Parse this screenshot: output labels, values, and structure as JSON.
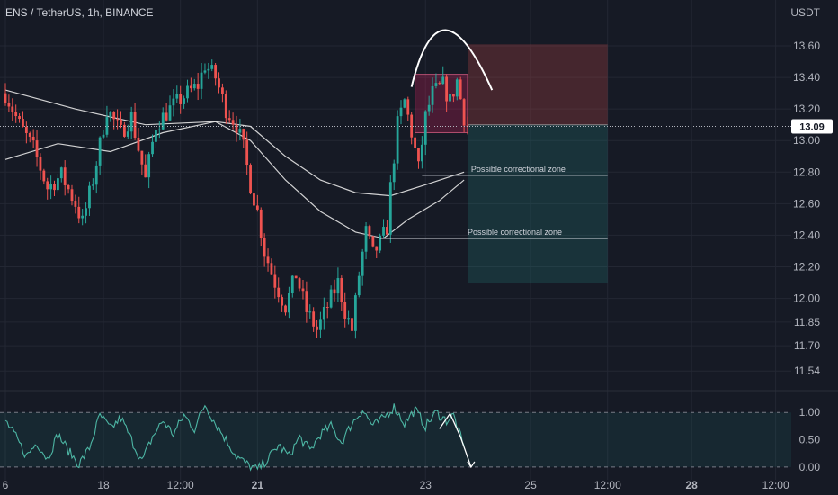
{
  "header": {
    "title": "ENS / TetherUS, 1h, BINANCE",
    "currency": "USDT"
  },
  "colors": {
    "background": "#161a25",
    "grid": "#232733",
    "up": "#26a69a",
    "down": "#ef5350",
    "ma": "#e6e6e6",
    "rsi": "#4db6a4"
  },
  "chart_data": [
    {
      "type": "candlestick",
      "title": "ENS / TetherUS, 1h, BINANCE",
      "ylabel": "USDT",
      "ylim": [
        11.45,
        13.72
      ],
      "y_ticks": [
        "13.60",
        "13.40",
        "13.20",
        "13.00",
        "12.80",
        "12.60",
        "12.40",
        "12.20",
        "12.00",
        "11.85",
        "11.70",
        "11.54"
      ],
      "y_tick_values": [
        13.6,
        13.4,
        13.2,
        13.0,
        12.8,
        12.6,
        12.4,
        12.2,
        12.0,
        11.85,
        11.7,
        11.54
      ],
      "x_ticks": [
        "6",
        "18",
        "12:00",
        "21",
        "23",
        "25",
        "12:00",
        "28",
        "12:00"
      ],
      "x_tick_bold": [
        "21",
        "28"
      ],
      "x_tick_hours": [
        0,
        28,
        50,
        72,
        120,
        150,
        172,
        196,
        220
      ],
      "x_range_hours": [
        0,
        226
      ],
      "last_price": "13.09",
      "last_price_value": 13.09,
      "key_points": [
        {
          "h": 0,
          "p": 13.3
        },
        {
          "h": 4,
          "p": 13.1
        },
        {
          "h": 8,
          "p": 12.95
        },
        {
          "h": 12,
          "p": 12.7
        },
        {
          "h": 16,
          "p": 12.78
        },
        {
          "h": 20,
          "p": 12.6
        },
        {
          "h": 22,
          "p": 12.48
        },
        {
          "h": 25,
          "p": 12.75
        },
        {
          "h": 29,
          "p": 13.2
        },
        {
          "h": 33,
          "p": 13.05
        },
        {
          "h": 36,
          "p": 13.15
        },
        {
          "h": 40,
          "p": 12.75
        },
        {
          "h": 43,
          "p": 13.1
        },
        {
          "h": 47,
          "p": 13.2
        },
        {
          "h": 52,
          "p": 13.3
        },
        {
          "h": 55,
          "p": 13.35
        },
        {
          "h": 57,
          "p": 13.48
        },
        {
          "h": 60,
          "p": 13.4
        },
        {
          "h": 63,
          "p": 13.2
        },
        {
          "h": 66,
          "p": 13.1
        },
        {
          "h": 68,
          "p": 12.95
        },
        {
          "h": 70,
          "p": 12.72
        },
        {
          "h": 72,
          "p": 12.55
        },
        {
          "h": 74,
          "p": 12.3
        },
        {
          "h": 77,
          "p": 12.1
        },
        {
          "h": 80,
          "p": 11.95
        },
        {
          "h": 83,
          "p": 12.15
        },
        {
          "h": 86,
          "p": 11.92
        },
        {
          "h": 89,
          "p": 11.8
        },
        {
          "h": 92,
          "p": 11.95
        },
        {
          "h": 95,
          "p": 12.1
        },
        {
          "h": 97,
          "p": 11.92
        },
        {
          "h": 99,
          "p": 11.8
        },
        {
          "h": 101,
          "p": 12.15
        },
        {
          "h": 103,
          "p": 12.42
        },
        {
          "h": 105,
          "p": 12.28
        },
        {
          "h": 107,
          "p": 12.35
        },
        {
          "h": 109,
          "p": 12.45
        },
        {
          "h": 110,
          "p": 12.7
        },
        {
          "h": 112,
          "p": 13.1
        },
        {
          "h": 114,
          "p": 13.25
        },
        {
          "h": 116,
          "p": 13.05
        },
        {
          "h": 118,
          "p": 12.82
        },
        {
          "h": 120,
          "p": 13.15
        },
        {
          "h": 122,
          "p": 13.3
        },
        {
          "h": 125,
          "p": 13.35
        },
        {
          "h": 127,
          "p": 13.25
        },
        {
          "h": 129,
          "p": 13.38
        },
        {
          "h": 131,
          "p": 13.15
        },
        {
          "h": 132,
          "p": 13.09
        }
      ],
      "moving_averages": [
        {
          "points": [
            {
              "h": 0,
              "p": 13.32
            },
            {
              "h": 20,
              "p": 13.2
            },
            {
              "h": 40,
              "p": 13.1
            },
            {
              "h": 60,
              "p": 13.12
            },
            {
              "h": 70,
              "p": 13.09
            },
            {
              "h": 80,
              "p": 12.9
            },
            {
              "h": 90,
              "p": 12.75
            },
            {
              "h": 100,
              "p": 12.67
            },
            {
              "h": 110,
              "p": 12.65
            },
            {
              "h": 120,
              "p": 12.72
            },
            {
              "h": 131,
              "p": 12.8
            }
          ]
        },
        {
          "points": [
            {
              "h": 0,
              "p": 12.88
            },
            {
              "h": 15,
              "p": 12.98
            },
            {
              "h": 30,
              "p": 12.93
            },
            {
              "h": 45,
              "p": 13.05
            },
            {
              "h": 60,
              "p": 13.12
            },
            {
              "h": 70,
              "p": 13.0
            },
            {
              "h": 80,
              "p": 12.75
            },
            {
              "h": 90,
              "p": 12.55
            },
            {
              "h": 100,
              "p": 12.42
            },
            {
              "h": 108,
              "p": 12.38
            },
            {
              "h": 115,
              "p": 12.5
            },
            {
              "h": 124,
              "p": 12.62
            },
            {
              "h": 131,
              "p": 12.75
            }
          ]
        }
      ],
      "annotations": {
        "arc": {
          "h_start": 116,
          "h_peak": 124,
          "h_end": 139,
          "p_start": 13.34,
          "p_peak": 13.7,
          "p_end": 13.32
        },
        "highlight_box": {
          "h0": 117,
          "h1": 132,
          "p0": 13.05,
          "p1": 13.42
        },
        "stop_zone": {
          "h0": 132,
          "h1": 172,
          "p0": 13.1,
          "p1": 13.61
        },
        "target_zone": {
          "h0": 132,
          "h1": 172,
          "p0": 12.1,
          "p1": 13.1
        },
        "zone_lines": [
          {
            "label": "Possible correctional zone",
            "h0": 119,
            "h1": 172,
            "p": 12.78,
            "label_h": 133
          },
          {
            "label": "Possible correctional zone",
            "h0": 107,
            "h1": 172,
            "p": 12.38,
            "label_h": 132
          }
        ]
      }
    },
    {
      "type": "line",
      "title": "",
      "ylim": [
        -0.1,
        1.3
      ],
      "y_ticks": [
        "1.00",
        "0.50",
        "0.00"
      ],
      "y_tick_values": [
        1.0,
        0.5,
        0.0
      ],
      "levels": [
        1.0,
        0.0
      ],
      "series": [
        {
          "points": [
            {
              "h": 0,
              "p": 0.85
            },
            {
              "h": 3,
              "p": 0.55
            },
            {
              "h": 6,
              "p": 0.2
            },
            {
              "h": 9,
              "p": 0.45
            },
            {
              "h": 12,
              "p": 0.15
            },
            {
              "h": 15,
              "p": 0.6
            },
            {
              "h": 18,
              "p": 0.3
            },
            {
              "h": 21,
              "p": 0.05
            },
            {
              "h": 24,
              "p": 0.35
            },
            {
              "h": 27,
              "p": 0.95
            },
            {
              "h": 30,
              "p": 0.7
            },
            {
              "h": 33,
              "p": 0.9
            },
            {
              "h": 36,
              "p": 0.5
            },
            {
              "h": 39,
              "p": 0.1
            },
            {
              "h": 42,
              "p": 0.55
            },
            {
              "h": 45,
              "p": 0.85
            },
            {
              "h": 48,
              "p": 0.6
            },
            {
              "h": 51,
              "p": 0.95
            },
            {
              "h": 54,
              "p": 0.7
            },
            {
              "h": 57,
              "p": 1.15
            },
            {
              "h": 60,
              "p": 0.8
            },
            {
              "h": 63,
              "p": 0.5
            },
            {
              "h": 66,
              "p": 0.2
            },
            {
              "h": 69,
              "p": 0.05
            },
            {
              "h": 72,
              "p": -0.05
            },
            {
              "h": 75,
              "p": 0.15
            },
            {
              "h": 78,
              "p": 0.4
            },
            {
              "h": 81,
              "p": 0.2
            },
            {
              "h": 84,
              "p": 0.55
            },
            {
              "h": 87,
              "p": 0.3
            },
            {
              "h": 90,
              "p": 0.6
            },
            {
              "h": 93,
              "p": 0.75
            },
            {
              "h": 96,
              "p": 0.45
            },
            {
              "h": 99,
              "p": 0.8
            },
            {
              "h": 102,
              "p": 1.05
            },
            {
              "h": 105,
              "p": 0.75
            },
            {
              "h": 108,
              "p": 0.9
            },
            {
              "h": 111,
              "p": 1.1
            },
            {
              "h": 114,
              "p": 0.8
            },
            {
              "h": 117,
              "p": 1.05
            },
            {
              "h": 120,
              "p": 0.75
            },
            {
              "h": 123,
              "p": 1.0
            },
            {
              "h": 126,
              "p": 0.85
            },
            {
              "h": 128,
              "p": 0.95
            },
            {
              "h": 130,
              "p": 0.55
            },
            {
              "h": 131,
              "p": 0.35
            }
          ]
        }
      ],
      "projection": [
        {
          "h": 124,
          "p": 0.7
        },
        {
          "h": 127,
          "p": 0.98
        },
        {
          "h": 130,
          "p": 0.55
        },
        {
          "h": 133,
          "p": 0.0
        }
      ]
    }
  ]
}
